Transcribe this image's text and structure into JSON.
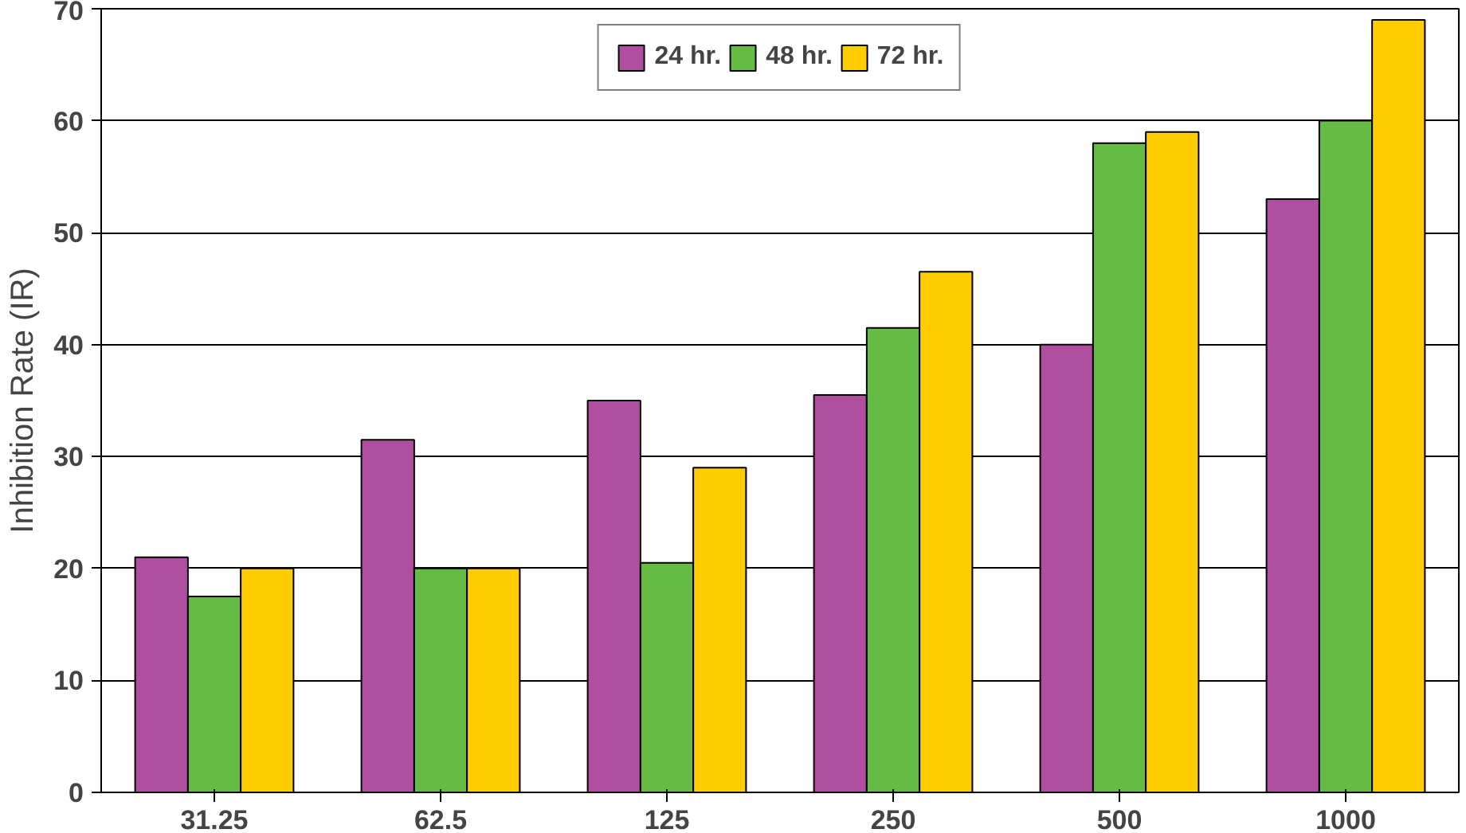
{
  "chart_data": {
    "type": "bar",
    "ylabel": "Inhibition Rate (IR)",
    "categories": [
      "31.25",
      "62.5",
      "125",
      "250",
      "500",
      "1000"
    ],
    "series": [
      {
        "name": "24 hr.",
        "color": "#b04fa0",
        "values": [
          21,
          31.5,
          35,
          35.5,
          40,
          53
        ]
      },
      {
        "name": "48 hr.",
        "color": "#66bb44",
        "values": [
          17.5,
          20,
          20.5,
          41.5,
          58,
          60
        ]
      },
      {
        "name": "72 hr.",
        "color": "#ffcc00",
        "values": [
          20,
          20,
          29,
          46.5,
          59,
          69
        ]
      }
    ],
    "ylim": [
      0,
      70
    ],
    "yticks": [
      0,
      10,
      20,
      30,
      40,
      50,
      60,
      70
    ],
    "grid": "y",
    "legend": "top"
  }
}
